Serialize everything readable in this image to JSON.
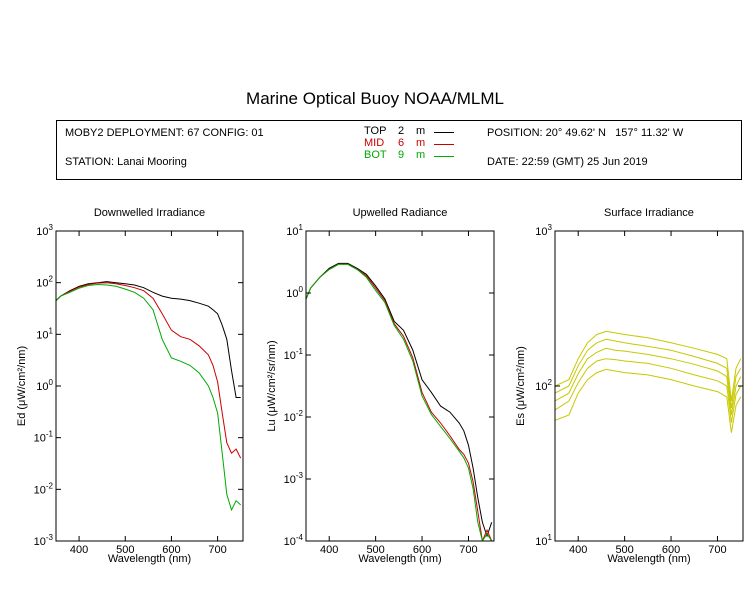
{
  "title": "Marine Optical Buoy NOAA/MLML",
  "info": {
    "deployment": "MOBY2 DEPLOYMENT: 67 CONFIG: 01",
    "station": "STATION: Lanai Mooring",
    "position": "POSITION: 20° 49.62' N   157° 11.32' W",
    "date": "DATE: 22:59 (GMT) 25 Jun 2019"
  },
  "legend": [
    {
      "label": "TOP",
      "depth": "2",
      "unit": "m",
      "color": "#000000"
    },
    {
      "label": "MID",
      "depth": "6",
      "unit": "m",
      "color": "#cc0000"
    },
    {
      "label": "BOT",
      "depth": "9",
      "unit": "m",
      "color": "#00aa00"
    }
  ],
  "chart_data": [
    {
      "type": "line",
      "title": "Downwelled Irradiance",
      "xlabel": "Wavelength (nm)",
      "ylabel": "Ed  (μW/cm²/nm)",
      "xlim": [
        350,
        755
      ],
      "ylim": [
        0.001,
        1000
      ],
      "yscale": "log",
      "xticks": [
        400,
        500,
        600,
        700
      ],
      "yticks": [
        {
          "value": 0.001,
          "base": "10",
          "exp": "-3"
        },
        {
          "value": 0.01,
          "base": "10",
          "exp": "-2"
        },
        {
          "value": 0.1,
          "base": "10",
          "exp": "-1"
        },
        {
          "value": 1,
          "base": "10",
          "exp": "0"
        },
        {
          "value": 10,
          "base": "10",
          "exp": "1"
        },
        {
          "value": 100,
          "base": "10",
          "exp": "2"
        },
        {
          "value": 1000,
          "base": "10",
          "exp": "3"
        }
      ],
      "series": [
        {
          "name": "TOP",
          "color": "#000000",
          "x": [
            350,
            360,
            380,
            400,
            420,
            440,
            460,
            480,
            500,
            520,
            540,
            560,
            580,
            600,
            620,
            640,
            660,
            680,
            690,
            700,
            710,
            720,
            730,
            740,
            750
          ],
          "y": [
            45,
            55,
            70,
            85,
            95,
            100,
            105,
            100,
            95,
            90,
            80,
            65,
            55,
            50,
            48,
            45,
            40,
            35,
            30,
            25,
            15,
            8,
            2,
            0.6,
            0.6
          ]
        },
        {
          "name": "MID",
          "color": "#cc0000",
          "x": [
            350,
            360,
            380,
            400,
            420,
            440,
            460,
            480,
            500,
            520,
            540,
            560,
            580,
            600,
            620,
            640,
            660,
            680,
            690,
            700,
            710,
            720,
            730,
            740,
            750
          ],
          "y": [
            45,
            55,
            68,
            82,
            92,
            98,
            100,
            95,
            88,
            80,
            70,
            50,
            25,
            12,
            9,
            8,
            6,
            4,
            2.5,
            1.2,
            0.3,
            0.08,
            0.05,
            0.06,
            0.04
          ]
        },
        {
          "name": "BOT",
          "color": "#00aa00",
          "x": [
            350,
            360,
            380,
            400,
            420,
            440,
            460,
            480,
            500,
            520,
            540,
            560,
            580,
            600,
            620,
            640,
            660,
            680,
            690,
            700,
            710,
            720,
            730,
            740,
            750
          ],
          "y": [
            45,
            55,
            65,
            78,
            88,
            92,
            90,
            85,
            75,
            65,
            50,
            30,
            8,
            3.5,
            3,
            2.5,
            1.8,
            1,
            0.6,
            0.3,
            0.05,
            0.008,
            0.004,
            0.006,
            0.005
          ]
        }
      ]
    },
    {
      "type": "line",
      "title": "Upwelled Radiance",
      "xlabel": "Wavelength (nm)",
      "ylabel": "Lu  (μW/cm²/sr/nm)",
      "xlim": [
        350,
        755
      ],
      "ylim": [
        0.0001,
        10
      ],
      "yscale": "log",
      "xticks": [
        400,
        500,
        600,
        700
      ],
      "yticks": [
        {
          "value": 0.0001,
          "base": "10",
          "exp": "-4"
        },
        {
          "value": 0.001,
          "base": "10",
          "exp": "-3"
        },
        {
          "value": 0.01,
          "base": "10",
          "exp": "-2"
        },
        {
          "value": 0.1,
          "base": "10",
          "exp": "-1"
        },
        {
          "value": 1,
          "base": "10",
          "exp": "0"
        },
        {
          "value": 10,
          "base": "10",
          "exp": "1"
        }
      ],
      "series": [
        {
          "name": "TOP",
          "color": "#000000",
          "x": [
            350,
            360,
            380,
            400,
            420,
            440,
            460,
            480,
            500,
            520,
            540,
            560,
            580,
            600,
            620,
            640,
            660,
            680,
            690,
            700,
            710,
            720,
            730,
            740,
            750
          ],
          "y": [
            0.8,
            1.2,
            1.8,
            2.5,
            3,
            3,
            2.5,
            2,
            1.3,
            0.8,
            0.35,
            0.25,
            0.12,
            0.04,
            0.025,
            0.015,
            0.012,
            0.008,
            0.006,
            0.0035,
            0.0015,
            0.0005,
            0.0002,
            0.00012,
            0.0002
          ]
        },
        {
          "name": "MID",
          "color": "#cc0000",
          "x": [
            350,
            360,
            380,
            400,
            420,
            440,
            460,
            480,
            500,
            520,
            540,
            560,
            580,
            600,
            620,
            640,
            660,
            680,
            690,
            700,
            710,
            720,
            730,
            740,
            750
          ],
          "y": [
            0.8,
            1.2,
            1.8,
            2.4,
            2.9,
            2.9,
            2.4,
            1.9,
            1.2,
            0.75,
            0.32,
            0.2,
            0.09,
            0.025,
            0.012,
            0.008,
            0.005,
            0.003,
            0.0025,
            0.0018,
            0.0009,
            0.0003,
            0.0001,
            0.00015,
            0.0001
          ]
        },
        {
          "name": "BOT",
          "color": "#00aa00",
          "x": [
            350,
            360,
            380,
            400,
            420,
            440,
            460,
            480,
            500,
            520,
            540,
            560,
            580,
            600,
            620,
            640,
            660,
            680,
            690,
            700,
            710,
            720,
            730,
            740,
            750
          ],
          "y": [
            0.8,
            1.2,
            1.8,
            2.4,
            2.9,
            2.9,
            2.4,
            1.8,
            1.1,
            0.7,
            0.3,
            0.18,
            0.08,
            0.022,
            0.011,
            0.007,
            0.0045,
            0.0028,
            0.0022,
            0.0015,
            0.0007,
            0.0002,
            0.0001,
            0.00013,
            0.0001
          ]
        }
      ]
    },
    {
      "type": "line",
      "title": "Surface Irradiance",
      "xlabel": "Wavelength (nm)",
      "ylabel": "Es  (μW/cm²/nm)",
      "xlim": [
        350,
        755
      ],
      "ylim": [
        10,
        1000
      ],
      "yscale": "log",
      "xticks": [
        400,
        500,
        600,
        700
      ],
      "yticks": [
        {
          "value": 10,
          "base": "10",
          "exp": "1"
        },
        {
          "value": 100,
          "base": "10",
          "exp": "2"
        },
        {
          "value": 1000,
          "base": "10",
          "exp": "3"
        }
      ],
      "series_color": "#c8c800",
      "series": [
        {
          "x": [
            350,
            380,
            400,
            420,
            440,
            460,
            480,
            500,
            550,
            600,
            650,
            700,
            720,
            730,
            740,
            750
          ],
          "y": [
            100,
            110,
            150,
            190,
            215,
            225,
            220,
            215,
            205,
            190,
            175,
            160,
            150,
            80,
            130,
            150
          ]
        },
        {
          "x": [
            350,
            380,
            400,
            420,
            440,
            460,
            480,
            500,
            550,
            600,
            650,
            700,
            720,
            730,
            740,
            750
          ],
          "y": [
            90,
            100,
            135,
            170,
            190,
            200,
            195,
            190,
            180,
            170,
            155,
            140,
            130,
            72,
            115,
            130
          ]
        },
        {
          "x": [
            350,
            380,
            400,
            420,
            440,
            460,
            480,
            500,
            550,
            600,
            650,
            700,
            720,
            730,
            740,
            750
          ],
          "y": [
            80,
            90,
            120,
            150,
            165,
            175,
            170,
            168,
            160,
            150,
            138,
            125,
            115,
            65,
            100,
            115
          ]
        },
        {
          "x": [
            350,
            380,
            400,
            420,
            440,
            460,
            480,
            500,
            550,
            600,
            650,
            700,
            720,
            730,
            740,
            750
          ],
          "y": [
            70,
            80,
            105,
            130,
            145,
            150,
            148,
            145,
            140,
            130,
            118,
            108,
            100,
            58,
            88,
            100
          ]
        },
        {
          "x": [
            350,
            380,
            400,
            420,
            440,
            460,
            480,
            500,
            550,
            600,
            650,
            700,
            720,
            730,
            740,
            750
          ],
          "y": [
            60,
            65,
            90,
            110,
            122,
            128,
            125,
            122,
            118,
            110,
            100,
            92,
            85,
            50,
            75,
            85
          ]
        }
      ]
    }
  ]
}
